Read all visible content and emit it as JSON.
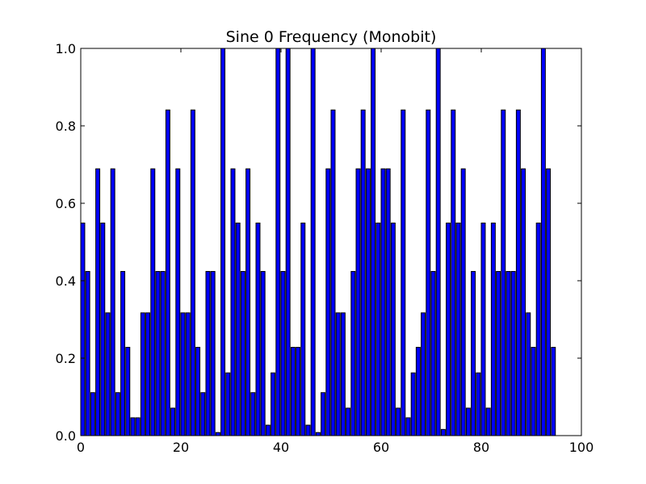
{
  "chart_data": {
    "type": "bar",
    "title": "Sine 0 Frequency (Monobit)",
    "xlabel": "",
    "ylabel": "",
    "xlim": [
      0,
      100
    ],
    "ylim": [
      0.0,
      1.0
    ],
    "xticks": [
      0,
      20,
      40,
      60,
      80,
      100
    ],
    "yticks": [
      0.0,
      0.2,
      0.4,
      0.6,
      0.8,
      1.0
    ],
    "xtick_labels": [
      "0",
      "20",
      "40",
      "60",
      "80",
      "100"
    ],
    "ytick_labels": [
      "0.0",
      "0.2",
      "0.4",
      "0.6",
      "0.8",
      "1.0"
    ],
    "bar_width": 0.8,
    "bar_color": "#0000ff",
    "edge_color": "#000000",
    "grid": false,
    "x": [
      0,
      1,
      2,
      3,
      4,
      5,
      6,
      7,
      8,
      9,
      10,
      11,
      12,
      13,
      14,
      15,
      16,
      17,
      18,
      19,
      20,
      21,
      22,
      23,
      24,
      25,
      26,
      27,
      28,
      29,
      30,
      31,
      32,
      33,
      34,
      35,
      36,
      37,
      38,
      39,
      40,
      41,
      42,
      43,
      44,
      45,
      46,
      47,
      48,
      49,
      50,
      51,
      52,
      53,
      54,
      55,
      56,
      57,
      58,
      59,
      60,
      61,
      62,
      63,
      64,
      65,
      66,
      67,
      68,
      69,
      70,
      71,
      72,
      73,
      74,
      75,
      76,
      77,
      78,
      79,
      80,
      81,
      82,
      83,
      84,
      85,
      86,
      87,
      88,
      89,
      90,
      91,
      92,
      93,
      94
    ],
    "values": [
      0.549,
      0.424,
      0.111,
      0.689,
      0.549,
      0.317,
      0.689,
      0.111,
      0.424,
      0.228,
      0.046,
      0.046,
      0.317,
      0.317,
      0.689,
      0.424,
      0.424,
      0.841,
      0.071,
      0.689,
      0.317,
      0.317,
      0.841,
      0.228,
      0.111,
      0.424,
      0.424,
      0.008,
      1.0,
      0.162,
      0.689,
      0.549,
      0.424,
      0.689,
      0.111,
      0.549,
      0.424,
      0.027,
      0.162,
      1.0,
      0.424,
      1.0,
      0.228,
      0.228,
      0.549,
      0.027,
      1.0,
      0.008,
      0.111,
      0.689,
      0.841,
      0.317,
      0.317,
      0.071,
      0.424,
      0.689,
      0.841,
      0.689,
      1.0,
      0.549,
      0.689,
      0.689,
      0.549,
      0.071,
      0.841,
      0.046,
      0.162,
      0.228,
      0.317,
      0.841,
      0.424,
      1.0,
      0.016,
      0.549,
      0.841,
      0.549,
      0.689,
      0.071,
      0.424,
      0.162,
      0.549,
      0.071,
      0.549,
      0.424,
      0.841,
      0.424,
      0.424,
      0.841,
      0.689,
      0.317,
      0.228,
      0.549,
      1.0,
      0.689,
      0.228
    ]
  }
}
